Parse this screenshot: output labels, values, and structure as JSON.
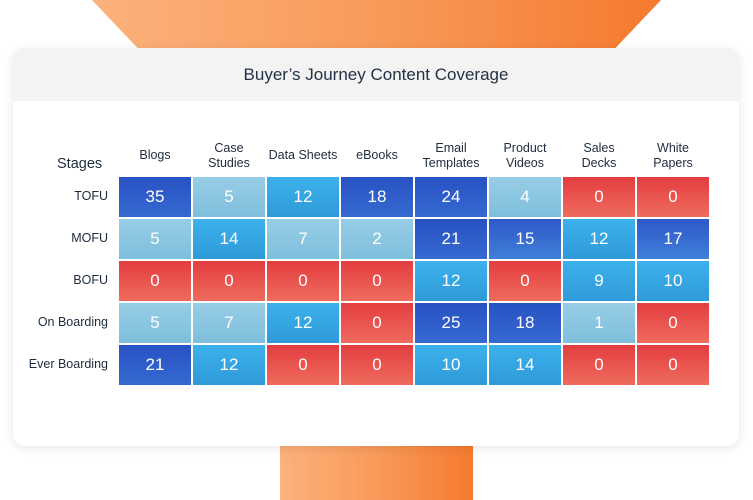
{
  "card": {
    "title": "Buyer’s Journey Content Coverage"
  },
  "chart_data": {
    "type": "heatmap",
    "title": "Buyer’s Journey Content Coverage",
    "ylabel": "Stages",
    "columns": [
      "Blogs",
      "Case Studies",
      "Data Sheets",
      "eBooks",
      "Email Templates",
      "Product Videos",
      "Sales Decks",
      "White Papers"
    ],
    "column_label_lines": [
      [
        "Blogs"
      ],
      [
        "Case",
        "Studies"
      ],
      [
        "Data Sheets"
      ],
      [
        "eBooks"
      ],
      [
        "Email",
        "Templates"
      ],
      [
        "Product",
        "Videos"
      ],
      [
        "Sales",
        "Decks"
      ],
      [
        "White",
        "Papers"
      ]
    ],
    "rows": [
      "TOFU",
      "MOFU",
      "BOFU",
      "On Boarding",
      "Ever Boarding"
    ],
    "values": [
      [
        35,
        5,
        12,
        18,
        24,
        4,
        0,
        0
      ],
      [
        5,
        14,
        7,
        2,
        21,
        15,
        12,
        17
      ],
      [
        0,
        0,
        0,
        0,
        12,
        0,
        9,
        10
      ],
      [
        5,
        7,
        12,
        0,
        25,
        18,
        1,
        0
      ],
      [
        21,
        12,
        0,
        0,
        10,
        14,
        0,
        0
      ]
    ],
    "color_scale": {
      "zero": "#e8524f",
      "low": "#8cc8e2",
      "mid": "#3aa7e3",
      "high": "#2f64d0"
    }
  }
}
